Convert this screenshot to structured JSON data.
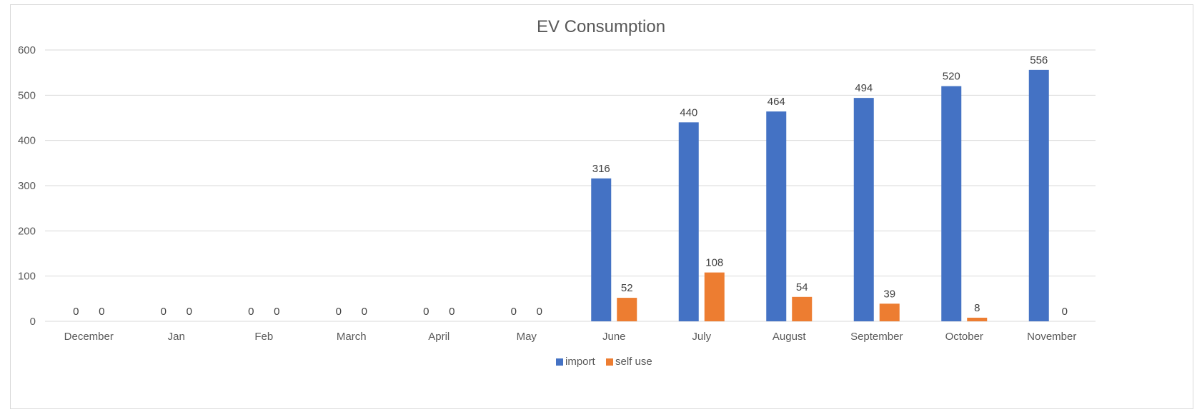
{
  "chart_data": {
    "type": "bar",
    "title": "EV Consumption",
    "xlabel": "",
    "ylabel": "",
    "categories": [
      "December",
      "Jan",
      "Feb",
      "March",
      "April",
      "May",
      "June",
      "July",
      "August",
      "September",
      "October",
      "November"
    ],
    "series": [
      {
        "name": "import",
        "color": "#4472C4",
        "values": [
          0,
          0,
          0,
          0,
          0,
          0,
          316,
          440,
          464,
          494,
          520,
          556
        ]
      },
      {
        "name": "self use",
        "color": "#ED7D31",
        "values": [
          0,
          0,
          0,
          0,
          0,
          0,
          52,
          108,
          54,
          39,
          8,
          0
        ]
      }
    ],
    "ylim": [
      0,
      600
    ],
    "yticks": [
      0,
      100,
      200,
      300,
      400,
      500,
      600
    ],
    "grid": true,
    "legend_position": "bottom",
    "data_labels": true
  }
}
